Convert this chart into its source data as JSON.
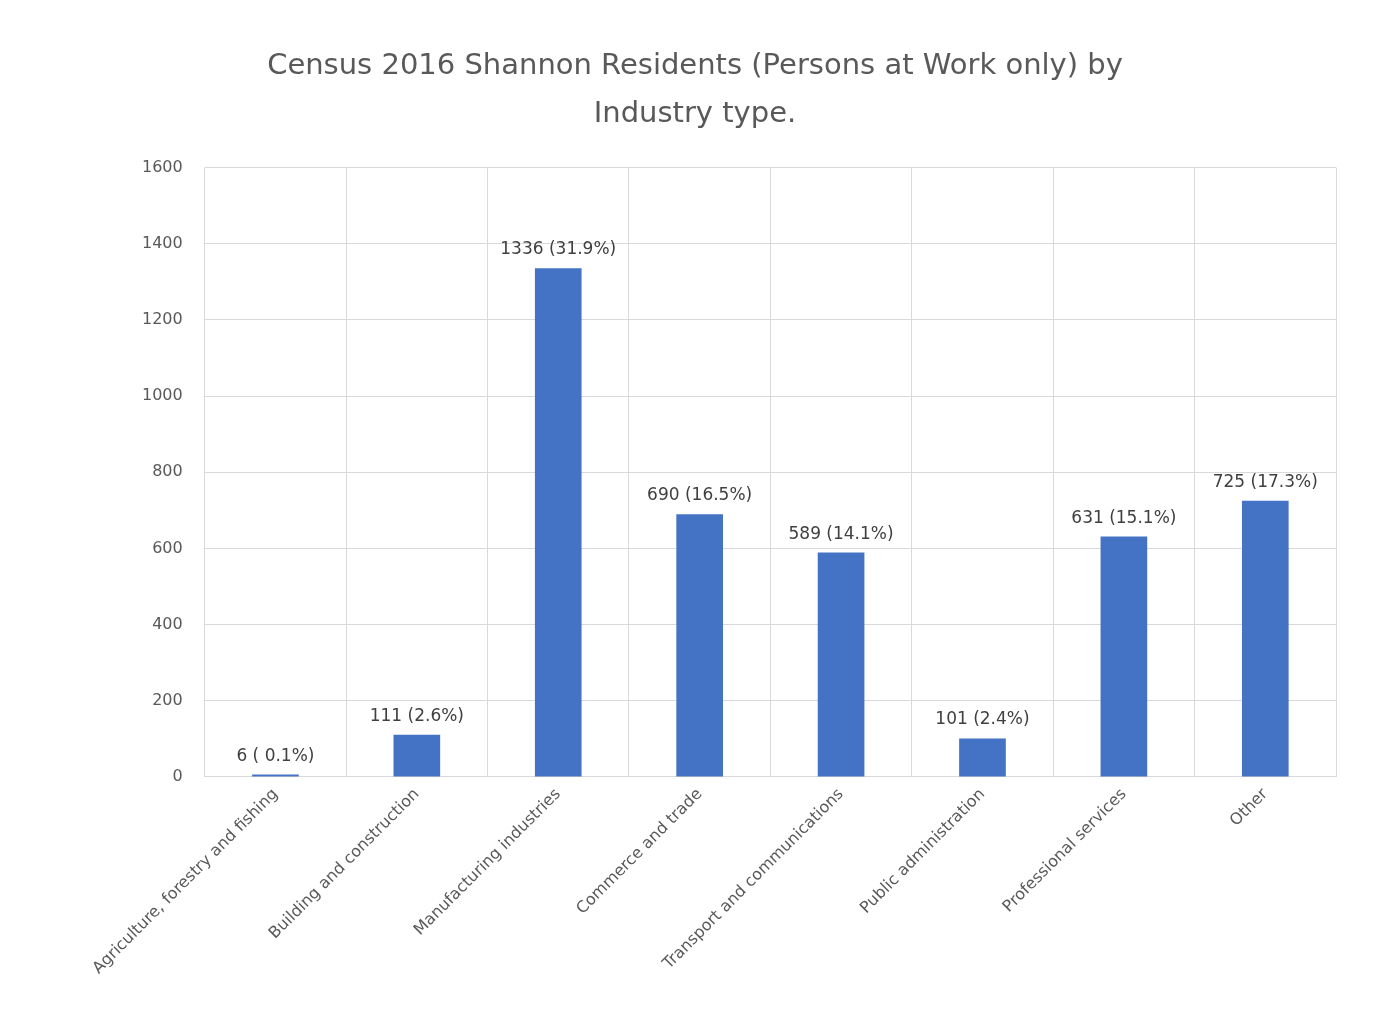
{
  "chart_data": {
    "type": "bar",
    "title": "Census 2016 Shannon Residents (Persons at Work only) by Industry type.",
    "categories": [
      "Agriculture, forestry and fishing",
      "Building and construction",
      "Manufacturing industries",
      "Commerce and trade",
      "Transport and communications",
      "Public administration",
      "Professional services",
      "Other"
    ],
    "values": [
      6,
      111,
      1336,
      690,
      589,
      101,
      631,
      725
    ],
    "value_labels": [
      "6 ( 0.1%)",
      "111 (2.6%)",
      "1336 (31.9%)",
      "690 (16.5%)",
      "589 (14.1%)",
      "101 (2.4%)",
      "631 (15.1%)",
      "725 (17.3%)"
    ],
    "color": "#4472c4",
    "ylim": [
      0,
      1600
    ],
    "yticks": [
      0,
      200,
      400,
      600,
      800,
      1000,
      1200,
      1400,
      1600
    ],
    "grid": true,
    "legend": false
  }
}
